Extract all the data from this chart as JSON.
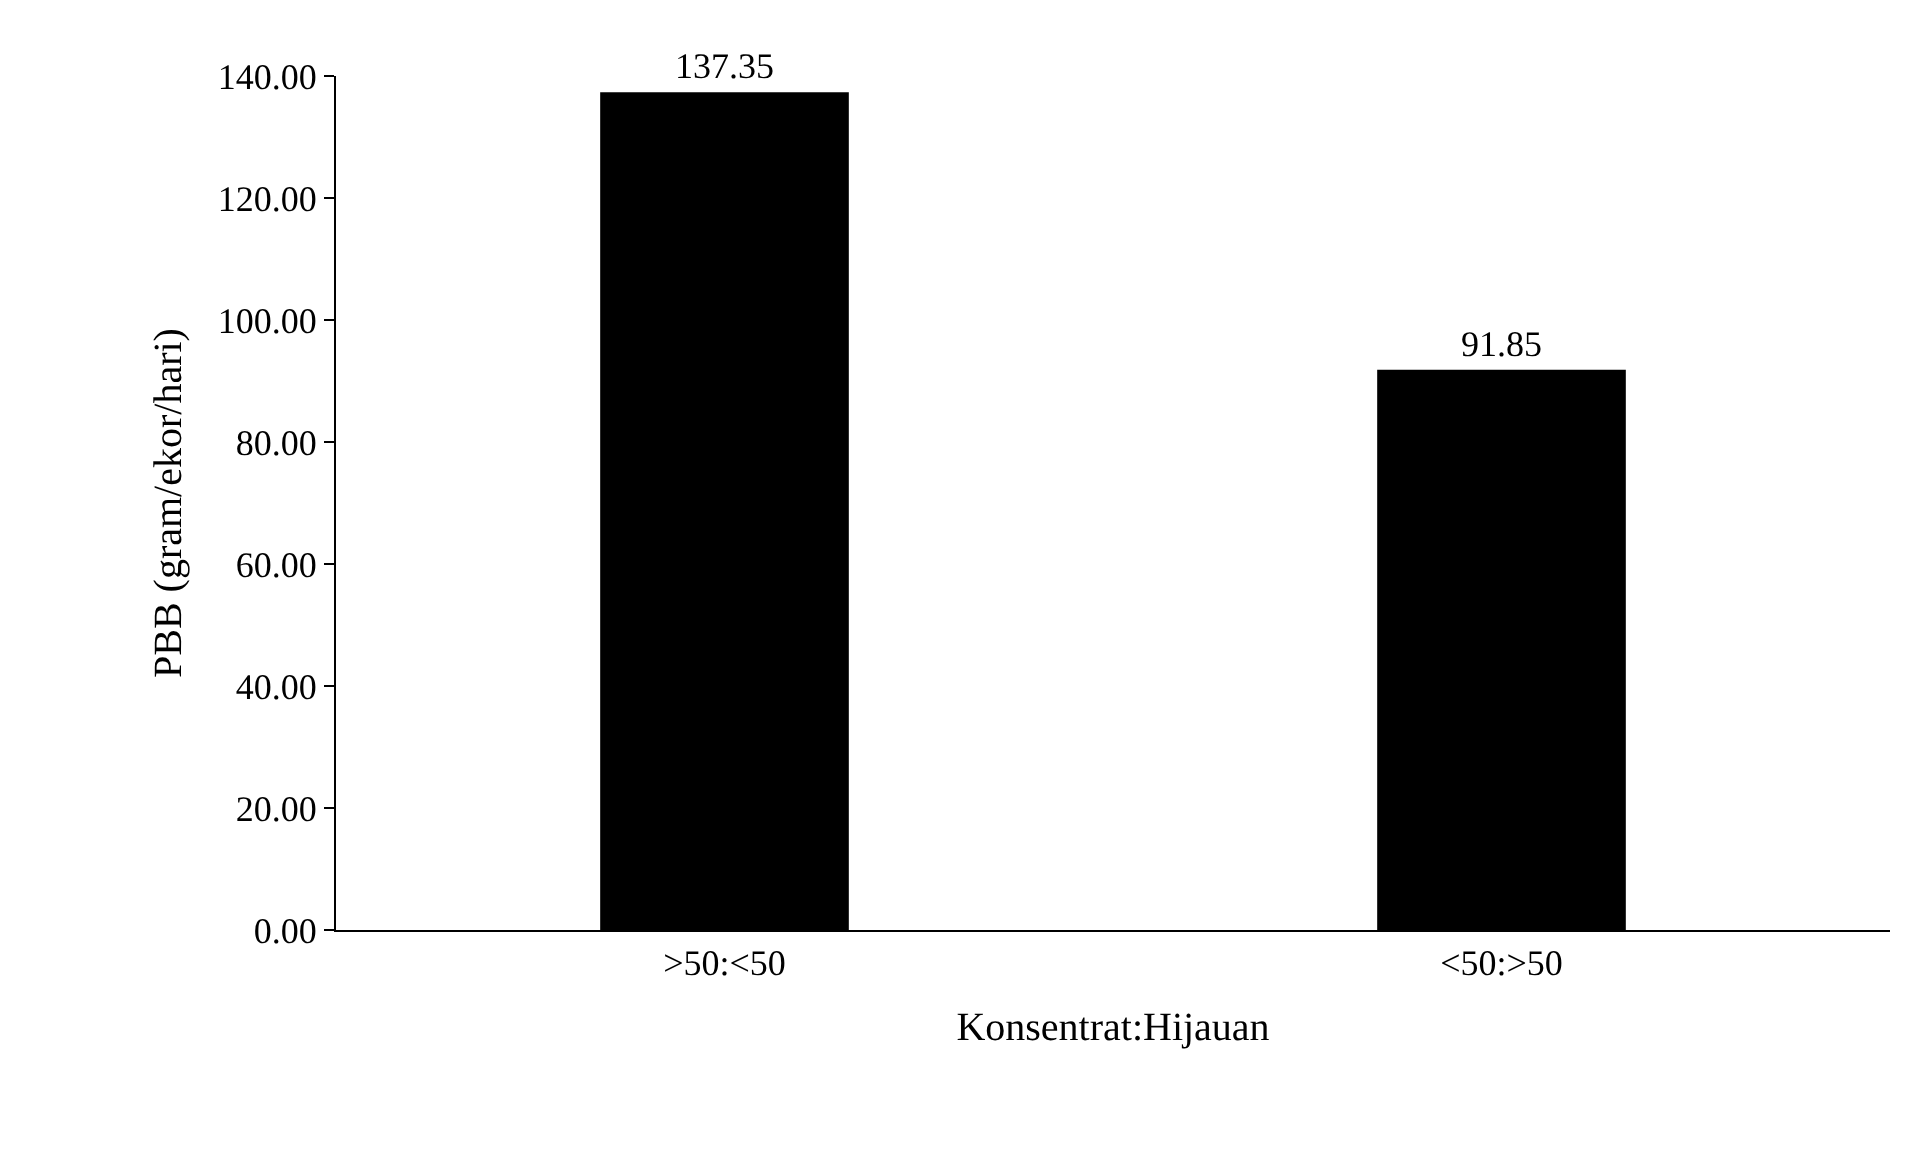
{
  "chart_data": {
    "type": "bar",
    "xlabel": "Konsentrat:Hijauan",
    "ylabel": "PBB (gram/ekor/hari)",
    "categories": [
      ">50:<50",
      "<50:>50"
    ],
    "values": [
      137.35,
      91.85
    ],
    "color": "#000000",
    "ylim": [
      0,
      140
    ],
    "yticks": [
      {
        "value": 0,
        "label": "0.00"
      },
      {
        "value": 20,
        "label": "20.00"
      },
      {
        "value": 40,
        "label": "40.00"
      },
      {
        "value": 60,
        "label": "60.00"
      },
      {
        "value": 80,
        "label": "80.00"
      },
      {
        "value": 100,
        "label": "100.00"
      },
      {
        "value": 120,
        "label": "120.00"
      },
      {
        "value": 140,
        "label": "140.00"
      }
    ],
    "data_labels": true
  }
}
